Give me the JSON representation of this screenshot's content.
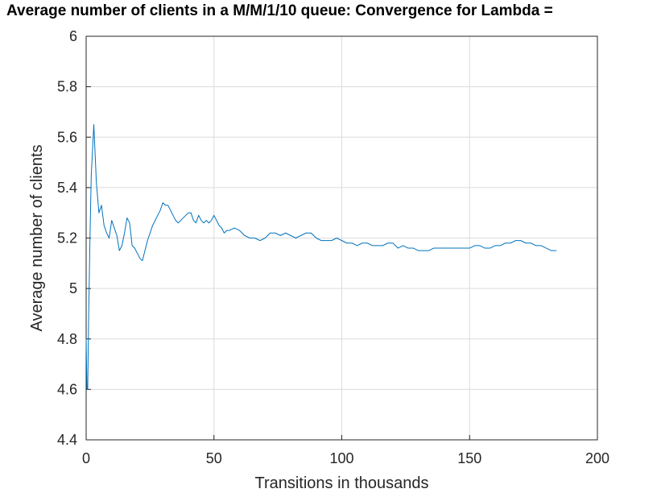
{
  "chart_data": {
    "type": "line",
    "title": "Average number of clients in a M/M/1/10 queue: Convergence for Lambda =",
    "xlabel": "Transitions in thousands",
    "ylabel": "Average number of clients",
    "xlim": [
      0,
      200
    ],
    "ylim": [
      4.4,
      6
    ],
    "xticks": [
      "0",
      "50",
      "100",
      "150",
      "200"
    ],
    "yticks": [
      "4.4",
      "4.6",
      "4.8",
      "5",
      "5.2",
      "5.4",
      "5.6",
      "5.8",
      "6"
    ],
    "grid": true,
    "line_color": "#0072BD",
    "series": [
      {
        "x": [
          0,
          0.3,
          0.6,
          1,
          1.5,
          2,
          3,
          4,
          5,
          6,
          7,
          8,
          9,
          10,
          11,
          12,
          13,
          14,
          15,
          16,
          17,
          18,
          19,
          20,
          21,
          22,
          23,
          24,
          25,
          26,
          27,
          28,
          29,
          30,
          31,
          32,
          33,
          34,
          35,
          36,
          37,
          38,
          39,
          40,
          41,
          42,
          43,
          44,
          45,
          46,
          47,
          48,
          49,
          50,
          51,
          52,
          53,
          54,
          55,
          56,
          58,
          60,
          62,
          64,
          66,
          68,
          70,
          72,
          74,
          76,
          78,
          80,
          82,
          84,
          86,
          88,
          90,
          92,
          94,
          96,
          98,
          100,
          102,
          104,
          106,
          108,
          110,
          112,
          114,
          116,
          118,
          120,
          122,
          124,
          126,
          128,
          130,
          132,
          134,
          136,
          138,
          140,
          142,
          144,
          146,
          148,
          150,
          152,
          154,
          156,
          158,
          160,
          162,
          164,
          166,
          168,
          170,
          172,
          174,
          176,
          178,
          180,
          182,
          184
        ],
        "y": [
          4.8,
          4.6,
          4.6,
          4.9,
          5.2,
          5.45,
          5.65,
          5.42,
          5.3,
          5.33,
          5.25,
          5.22,
          5.2,
          5.27,
          5.24,
          5.21,
          5.15,
          5.17,
          5.22,
          5.28,
          5.26,
          5.17,
          5.16,
          5.14,
          5.12,
          5.11,
          5.15,
          5.19,
          5.22,
          5.25,
          5.27,
          5.29,
          5.31,
          5.34,
          5.33,
          5.33,
          5.31,
          5.29,
          5.27,
          5.26,
          5.27,
          5.28,
          5.29,
          5.3,
          5.3,
          5.27,
          5.26,
          5.29,
          5.27,
          5.26,
          5.27,
          5.26,
          5.27,
          5.29,
          5.27,
          5.25,
          5.24,
          5.22,
          5.23,
          5.23,
          5.24,
          5.23,
          5.21,
          5.2,
          5.2,
          5.19,
          5.2,
          5.22,
          5.22,
          5.21,
          5.22,
          5.21,
          5.2,
          5.21,
          5.22,
          5.22,
          5.2,
          5.19,
          5.19,
          5.19,
          5.2,
          5.19,
          5.18,
          5.18,
          5.17,
          5.18,
          5.18,
          5.17,
          5.17,
          5.17,
          5.18,
          5.18,
          5.16,
          5.17,
          5.16,
          5.16,
          5.15,
          5.15,
          5.15,
          5.16,
          5.16,
          5.16,
          5.16,
          5.16,
          5.16,
          5.16,
          5.16,
          5.17,
          5.17,
          5.16,
          5.16,
          5.17,
          5.17,
          5.18,
          5.18,
          5.19,
          5.19,
          5.18,
          5.18,
          5.17,
          5.17,
          5.16,
          5.15,
          5.15
        ]
      }
    ]
  }
}
